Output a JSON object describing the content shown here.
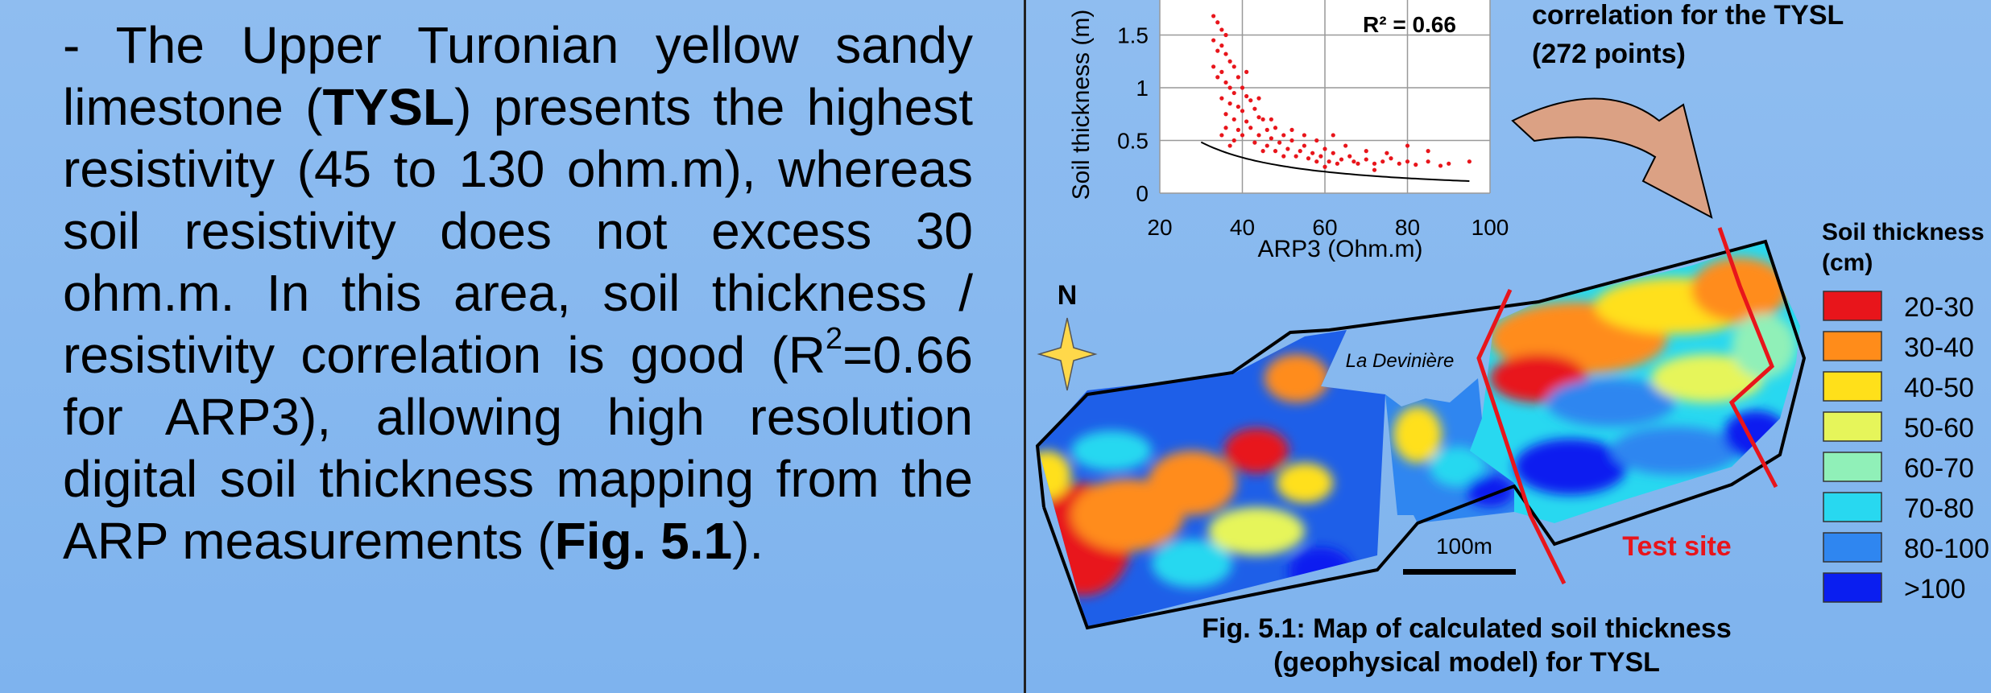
{
  "paragraph": {
    "dash": "-",
    "t1": "The Upper Turonian yellow sandy limestone (",
    "tysl": "TYSL",
    "t2": ") presents the highest resistivity (45 to 130 ohm.m), whereas soil resistivity does not excess 30 ohm.m. In this area, soil thickness / resistivity correlation is good (R",
    "sup": "2",
    "t3": "=0.66 for ARP3), allowing high resolution digital soil thickness mapping from the ARP measurements (",
    "figref": "Fig. 5.1",
    "t4": ")."
  },
  "scatter_title": {
    "line1": "correlation for the TYSL",
    "line2": "(272 points)"
  },
  "chart_data": {
    "type": "scatter",
    "title": "",
    "xlabel": "ARP3 (Ohm.m)",
    "ylabel": "Soil thickness (m)",
    "xlim": [
      20,
      100
    ],
    "ylim": [
      0,
      2
    ],
    "xticks": [
      "20",
      "40",
      "60",
      "80",
      "100"
    ],
    "yticks": [
      "0",
      "0.5",
      "1",
      "1.5"
    ],
    "grid": true,
    "annotation": "R² = 0.66",
    "n_points": 272,
    "points": [
      [
        33,
        1.68
      ],
      [
        34,
        1.62
      ],
      [
        35,
        1.55
      ],
      [
        36,
        1.5
      ],
      [
        33,
        1.45
      ],
      [
        35,
        1.4
      ],
      [
        34,
        1.35
      ],
      [
        36,
        1.32
      ],
      [
        37,
        1.25
      ],
      [
        33,
        1.2
      ],
      [
        35,
        1.15
      ],
      [
        38,
        1.2
      ],
      [
        34,
        1.1
      ],
      [
        36,
        1.05
      ],
      [
        37,
        1.0
      ],
      [
        39,
        1.1
      ],
      [
        38,
        0.95
      ],
      [
        40,
        1.0
      ],
      [
        35,
        0.9
      ],
      [
        41,
        0.92
      ],
      [
        37,
        0.85
      ],
      [
        39,
        0.82
      ],
      [
        42,
        0.88
      ],
      [
        36,
        0.75
      ],
      [
        40,
        0.78
      ],
      [
        43,
        0.8
      ],
      [
        38,
        0.7
      ],
      [
        44,
        0.72
      ],
      [
        41,
        0.68
      ],
      [
        45,
        0.7
      ],
      [
        36,
        0.62
      ],
      [
        39,
        0.6
      ],
      [
        42,
        0.62
      ],
      [
        46,
        0.6
      ],
      [
        48,
        0.62
      ],
      [
        40,
        0.55
      ],
      [
        44,
        0.55
      ],
      [
        47,
        0.52
      ],
      [
        50,
        0.55
      ],
      [
        43,
        0.48
      ],
      [
        46,
        0.45
      ],
      [
        49,
        0.48
      ],
      [
        52,
        0.5
      ],
      [
        55,
        0.45
      ],
      [
        45,
        0.4
      ],
      [
        48,
        0.4
      ],
      [
        51,
        0.42
      ],
      [
        54,
        0.4
      ],
      [
        57,
        0.38
      ],
      [
        60,
        0.42
      ],
      [
        50,
        0.35
      ],
      [
        53,
        0.35
      ],
      [
        56,
        0.33
      ],
      [
        59,
        0.35
      ],
      [
        62,
        0.38
      ],
      [
        58,
        0.3
      ],
      [
        61,
        0.3
      ],
      [
        64,
        0.32
      ],
      [
        66,
        0.35
      ],
      [
        63,
        0.28
      ],
      [
        67,
        0.3
      ],
      [
        70,
        0.32
      ],
      [
        68,
        0.28
      ],
      [
        72,
        0.28
      ],
      [
        74,
        0.3
      ],
      [
        76,
        0.33
      ],
      [
        78,
        0.28
      ],
      [
        80,
        0.3
      ],
      [
        82,
        0.27
      ],
      [
        85,
        0.3
      ],
      [
        88,
        0.26
      ],
      [
        90,
        0.28
      ],
      [
        95,
        0.3
      ],
      [
        70,
        0.4
      ],
      [
        75,
        0.38
      ],
      [
        80,
        0.45
      ],
      [
        65,
        0.45
      ],
      [
        58,
        0.5
      ],
      [
        62,
        0.55
      ],
      [
        85,
        0.4
      ],
      [
        55,
        0.55
      ],
      [
        52,
        0.6
      ],
      [
        47,
        0.7
      ],
      [
        44,
        0.9
      ],
      [
        41,
        1.15
      ],
      [
        38,
        0.5
      ],
      [
        35,
        0.55
      ],
      [
        37,
        0.45
      ],
      [
        60,
        0.25
      ],
      [
        72,
        0.22
      ]
    ],
    "trend": {
      "form": "power",
      "a": 34,
      "b": -1.25
    }
  },
  "map": {
    "north": "N",
    "place": "La Devinière",
    "scale": "100m",
    "test_site": "Test site"
  },
  "legend": {
    "title_line1": "Soil thickness",
    "title_line2": "(cm)",
    "items": [
      {
        "label": "20-30",
        "color": "#e8151b"
      },
      {
        "label": "30-40",
        "color": "#ff8c1a"
      },
      {
        "label": "40-50",
        "color": "#ffe01a"
      },
      {
        "label": "50-60",
        "color": "#e6f55a"
      },
      {
        "label": "60-70",
        "color": "#90f0b8"
      },
      {
        "label": "70-80",
        "color": "#28d8f0"
      },
      {
        "label": "80-100",
        "color": "#2f86f0"
      },
      {
        "label": ">100",
        "color": "#0a1ef0"
      }
    ]
  },
  "caption": {
    "line1": "Fig. 5.1: Map of calculated soil thickness",
    "line2": "(geophysical model) for TYSL"
  }
}
